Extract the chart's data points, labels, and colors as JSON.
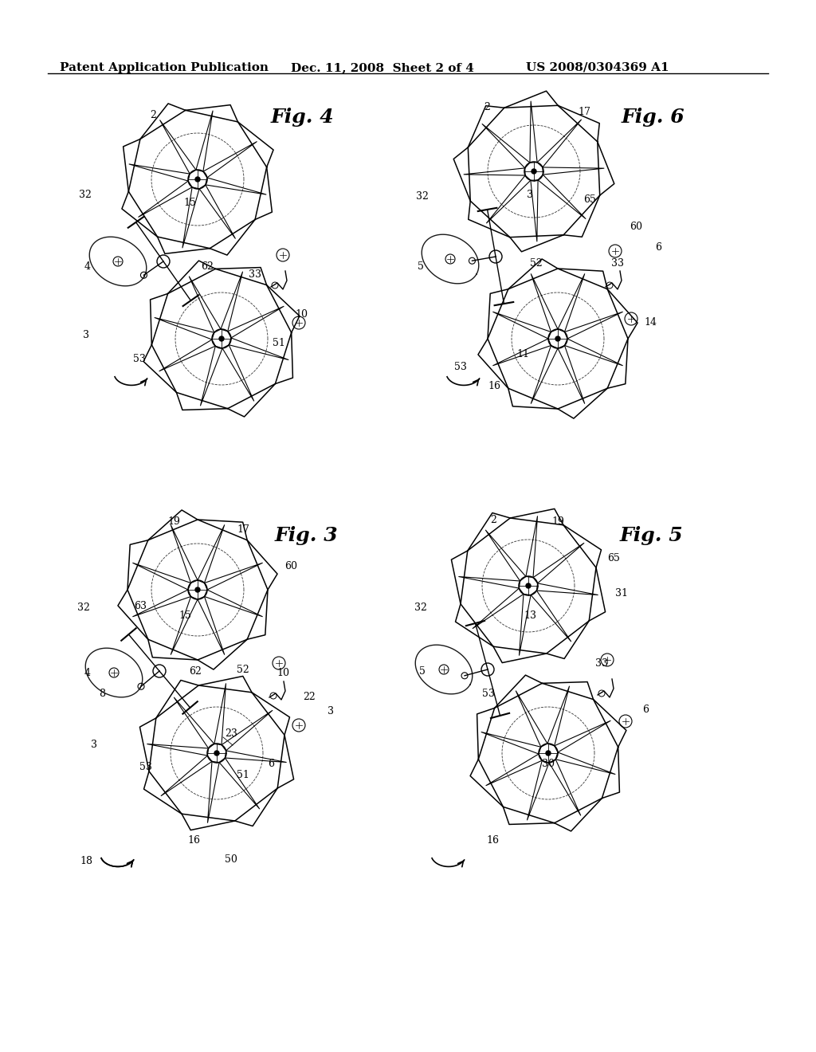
{
  "header_left": "Patent Application Publication",
  "header_mid": "Dec. 11, 2008  Sheet 2 of 4",
  "header_right": "US 2008/0304369 A1",
  "fig4_label": "Fig. 4",
  "fig6_label": "Fig. 6",
  "fig3_label": "Fig. 3",
  "fig5_label": "Fig. 5",
  "bg_color": "#ffffff",
  "line_color": "#000000",
  "header_fontsize": 11,
  "fig_label_fontsize": 18,
  "number_fontsize": 9
}
